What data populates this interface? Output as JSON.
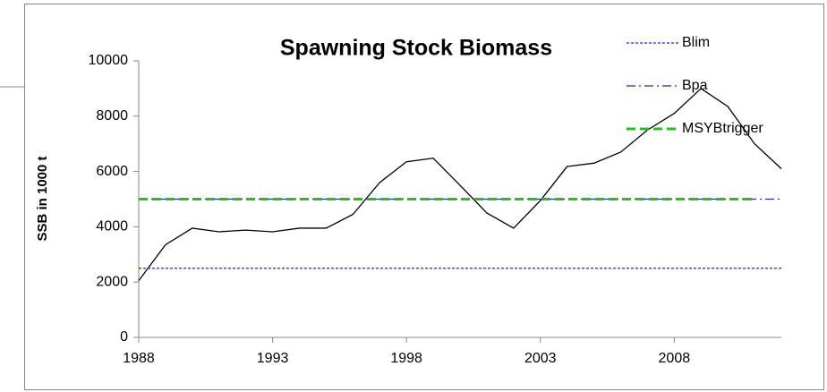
{
  "chart_data": {
    "type": "line",
    "title": "Spawning Stock Biomass",
    "y_label": "SSB in 1000 t",
    "x": [
      1988,
      1989,
      1990,
      1991,
      1992,
      1993,
      1994,
      1995,
      1996,
      1997,
      1998,
      1999,
      2000,
      2001,
      2002,
      2003,
      2004,
      2005,
      2006,
      2007,
      2008,
      2009,
      2010,
      2011,
      2012
    ],
    "xlim": [
      1988,
      2012
    ],
    "xticks": [
      1988,
      1993,
      1998,
      2003,
      2008
    ],
    "ylim": [
      0,
      10000
    ],
    "yticks": [
      0,
      2000,
      4000,
      6000,
      8000,
      10000
    ],
    "grid": false,
    "legend": "top-right",
    "series": [
      {
        "name": "SSB",
        "color": "#000000",
        "style": "solid",
        "width": 1.3,
        "in_legend": false,
        "values": [
          2050,
          3350,
          3950,
          3820,
          3880,
          3820,
          3950,
          3950,
          4450,
          5600,
          6350,
          6480,
          5500,
          4500,
          3950,
          4950,
          6180,
          6300,
          6700,
          7500,
          8100,
          9000,
          8350,
          7000,
          6100
        ]
      },
      {
        "name": "Blim",
        "color": "#1a2fd6",
        "style": "dotted",
        "width": 1.2,
        "in_legend": true,
        "values": [
          2500,
          2500,
          2500,
          2500,
          2500,
          2500,
          2500,
          2500,
          2500,
          2500,
          2500,
          2500,
          2500,
          2500,
          2500,
          2500,
          2500,
          2500,
          2500,
          2500,
          2500,
          2500,
          2500,
          2500,
          2500
        ]
      },
      {
        "name": "Bpa",
        "color": "#1a2fa0",
        "style": "dashdot",
        "width": 1.2,
        "in_legend": true,
        "values": [
          5000,
          5000,
          5000,
          5000,
          5000,
          5000,
          5000,
          5000,
          5000,
          5000,
          5000,
          5000,
          5000,
          5000,
          5000,
          5000,
          5000,
          5000,
          5000,
          5000,
          5000,
          5000,
          5000,
          5000,
          5000
        ]
      },
      {
        "name": "MSYBtrigger",
        "color": "#22c022",
        "style": "dashed",
        "width": 3,
        "in_legend": true,
        "values": [
          5000,
          5000,
          5000,
          5000,
          5000,
          5000,
          5000,
          5000,
          5000,
          5000,
          5000,
          5000,
          5000,
          5000,
          5000,
          5000,
          5000,
          5000,
          5000,
          5000,
          5000,
          5000,
          5000,
          5000,
          null
        ]
      }
    ]
  }
}
